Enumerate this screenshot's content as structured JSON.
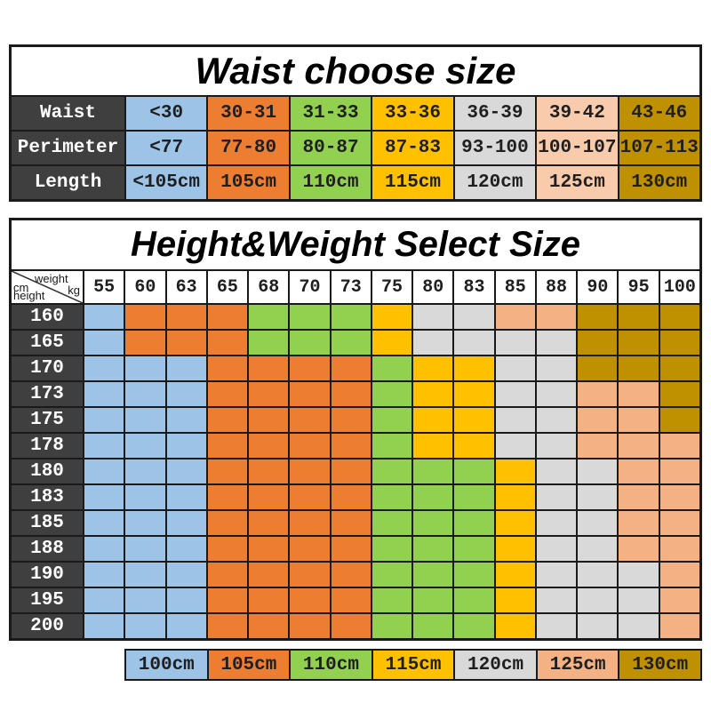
{
  "colors": {
    "border": "#1a1a1a",
    "dark_header_bg": "#3f3f3f",
    "dark_header_text": "#ffffff",
    "cell_text": "#1f1f1f",
    "title_text": "#000000",
    "size_colors": {
      "100": "#9DC3E6",
      "105": "#ED7D31",
      "110": "#92D050",
      "115": "#FFC000",
      "120": "#D9D9D9",
      "125": "#F4B183",
      "130": "#BF9000"
    },
    "waist_column_colors": [
      "#9DC3E6",
      "#ED7D31",
      "#92D050",
      "#FFC000",
      "#D9D9D9",
      "#F8CBAD",
      "#BF9000"
    ]
  },
  "chart_data": [
    {
      "type": "table",
      "title": "Waist choose size",
      "row_headers": [
        "Waist",
        "Perimeter",
        "Length"
      ],
      "rows": [
        [
          "<30",
          "30-31",
          "31-33",
          "33-36",
          "36-39",
          "39-42",
          "43-46"
        ],
        [
          "<77",
          "77-80",
          "80-87",
          "87-83",
          "93-100",
          "100-107",
          "107-113"
        ],
        [
          "<105cm",
          "105cm",
          "110cm",
          "115cm",
          "120cm",
          "125cm",
          "130cm"
        ]
      ]
    },
    {
      "type": "heatmap",
      "title": "Height&Weight Select Size",
      "corner": {
        "weight": "weight",
        "weight_unit": "kg",
        "height_unit": "cm",
        "height": "height"
      },
      "weights_kg": [
        "55",
        "60",
        "63",
        "65",
        "68",
        "70",
        "73",
        "75",
        "80",
        "83",
        "85",
        "88",
        "90",
        "95",
        "100"
      ],
      "heights_cm": [
        "160",
        "165",
        "170",
        "173",
        "175",
        "178",
        "180",
        "183",
        "185",
        "188",
        "190",
        "195",
        "200"
      ],
      "cell_size_cm": [
        [
          "100",
          "105",
          "105",
          "105",
          "110",
          "110",
          "110",
          "115",
          "120",
          "120",
          "125",
          "125",
          "130",
          "130",
          "130"
        ],
        [
          "100",
          "105",
          "105",
          "105",
          "110",
          "110",
          "110",
          "115",
          "120",
          "120",
          "120",
          "120",
          "130",
          "130",
          "130"
        ],
        [
          "100",
          "100",
          "100",
          "105",
          "105",
          "105",
          "105",
          "110",
          "115",
          "115",
          "120",
          "120",
          "130",
          "130",
          "130"
        ],
        [
          "100",
          "100",
          "100",
          "105",
          "105",
          "105",
          "105",
          "110",
          "115",
          "115",
          "120",
          "120",
          "125",
          "125",
          "130"
        ],
        [
          "100",
          "100",
          "100",
          "105",
          "105",
          "105",
          "105",
          "110",
          "115",
          "115",
          "120",
          "120",
          "125",
          "125",
          "130"
        ],
        [
          "100",
          "100",
          "100",
          "105",
          "105",
          "105",
          "105",
          "110",
          "115",
          "115",
          "120",
          "120",
          "125",
          "125",
          "125"
        ],
        [
          "100",
          "100",
          "100",
          "105",
          "105",
          "105",
          "105",
          "110",
          "110",
          "110",
          "115",
          "120",
          "120",
          "125",
          "125"
        ],
        [
          "100",
          "100",
          "100",
          "105",
          "105",
          "105",
          "105",
          "110",
          "110",
          "110",
          "115",
          "120",
          "120",
          "125",
          "125"
        ],
        [
          "100",
          "100",
          "100",
          "105",
          "105",
          "105",
          "105",
          "110",
          "110",
          "110",
          "115",
          "120",
          "120",
          "125",
          "125"
        ],
        [
          "100",
          "100",
          "100",
          "105",
          "105",
          "105",
          "105",
          "110",
          "110",
          "110",
          "115",
          "120",
          "120",
          "125",
          "125"
        ],
        [
          "100",
          "100",
          "100",
          "105",
          "105",
          "105",
          "105",
          "110",
          "110",
          "110",
          "115",
          "120",
          "120",
          "120",
          "125"
        ],
        [
          "100",
          "100",
          "100",
          "105",
          "105",
          "105",
          "105",
          "110",
          "110",
          "110",
          "115",
          "120",
          "120",
          "120",
          "125"
        ],
        [
          "100",
          "100",
          "100",
          "105",
          "105",
          "105",
          "105",
          "110",
          "110",
          "110",
          "115",
          "120",
          "120",
          "120",
          "125"
        ]
      ],
      "legend": [
        "100cm",
        "105cm",
        "110cm",
        "115cm",
        "120cm",
        "125cm",
        "130cm"
      ]
    }
  ]
}
